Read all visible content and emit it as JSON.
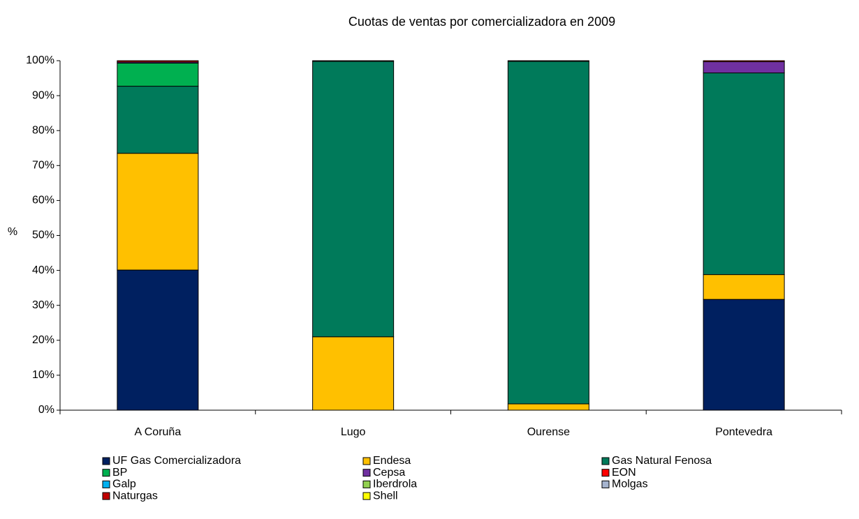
{
  "chart_data": {
    "type": "bar",
    "stacked": true,
    "title": "Cuotas de ventas por comercializadora en 2009",
    "y_label": "%",
    "categories": [
      "A Coruña",
      "Lugo",
      "Ourense",
      "Pontevedra"
    ],
    "series": [
      {
        "name": "UF Gas Comercializadora",
        "color": "#002060",
        "values": [
          40.1,
          0,
          0,
          31.7
        ]
      },
      {
        "name": "Endesa",
        "color": "#ffc000",
        "values": [
          33.4,
          21,
          1.8,
          7.1
        ]
      },
      {
        "name": "Gas Natural Fenosa",
        "color": "#007a5a",
        "values": [
          19.2,
          78.8,
          98,
          57.7
        ]
      },
      {
        "name": "BP",
        "color": "#00b050",
        "values": [
          6.6,
          0.2,
          0.2,
          0
        ]
      },
      {
        "name": "Cepsa",
        "color": "#7030a0",
        "values": [
          0.3,
          0,
          0,
          3.2
        ]
      },
      {
        "name": "EON",
        "color": "#ff0000",
        "values": [
          0,
          0,
          0,
          0
        ]
      },
      {
        "name": "Galp",
        "color": "#00b0f0",
        "values": [
          0,
          0,
          0,
          0
        ]
      },
      {
        "name": "Iberdrola",
        "color": "#92d050",
        "values": [
          0,
          0,
          0,
          0
        ]
      },
      {
        "name": "Molgas",
        "color": "#a6b4cf",
        "values": [
          0,
          0,
          0,
          0
        ]
      },
      {
        "name": "Naturgas",
        "color": "#c00000",
        "values": [
          0.4,
          0,
          0,
          0.3
        ]
      },
      {
        "name": "Shell",
        "color": "#ffff00",
        "values": [
          0,
          0,
          0,
          0
        ]
      }
    ],
    "ylim": [
      0,
      100
    ],
    "yticks": [
      {
        "value": 0,
        "label": "0%"
      },
      {
        "value": 10,
        "label": "10%"
      },
      {
        "value": 20,
        "label": "20%"
      },
      {
        "value": 30,
        "label": "30%"
      },
      {
        "value": 40,
        "label": "40%"
      },
      {
        "value": 50,
        "label": "50%"
      },
      {
        "value": 60,
        "label": "60%"
      },
      {
        "value": 70,
        "label": "70%"
      },
      {
        "value": 80,
        "label": "80%"
      },
      {
        "value": 90,
        "label": "90%"
      },
      {
        "value": 100,
        "label": "100%"
      }
    ],
    "grid": false,
    "legend": "bottom"
  }
}
